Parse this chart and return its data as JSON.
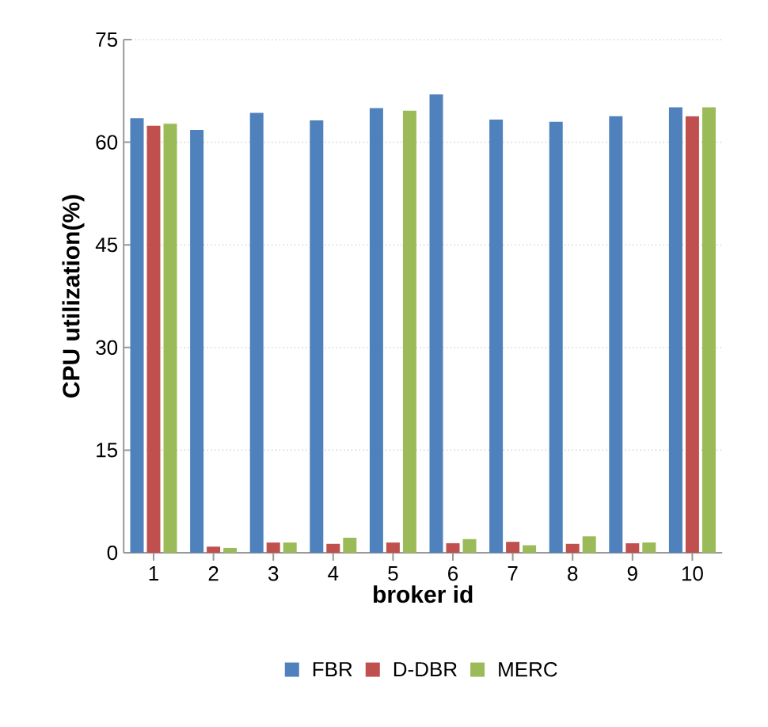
{
  "chart_data": {
    "type": "bar",
    "xlabel": "broker id",
    "ylabel": "CPU utilization(%)",
    "categories": [
      "1",
      "2",
      "3",
      "4",
      "5",
      "6",
      "7",
      "8",
      "9",
      "10"
    ],
    "series": [
      {
        "name": "FBR",
        "color": "#4f81bd",
        "values": [
          63.5,
          61.8,
          64.3,
          63.2,
          65.0,
          67.0,
          63.3,
          63.0,
          63.8,
          65.1
        ]
      },
      {
        "name": "D-DBR",
        "color": "#c0504d",
        "values": [
          62.4,
          0.9,
          1.5,
          1.3,
          1.5,
          1.4,
          1.6,
          1.3,
          1.4,
          63.8
        ]
      },
      {
        "name": "MERC",
        "color": "#9bbb59",
        "values": [
          62.7,
          0.7,
          1.5,
          2.2,
          64.6,
          2.0,
          1.1,
          2.4,
          1.5,
          65.1
        ]
      }
    ],
    "ylim": [
      0,
      75
    ],
    "yticks": [
      0,
      15,
      30,
      45,
      60,
      75
    ],
    "grid": "y",
    "legend": "bottom"
  }
}
